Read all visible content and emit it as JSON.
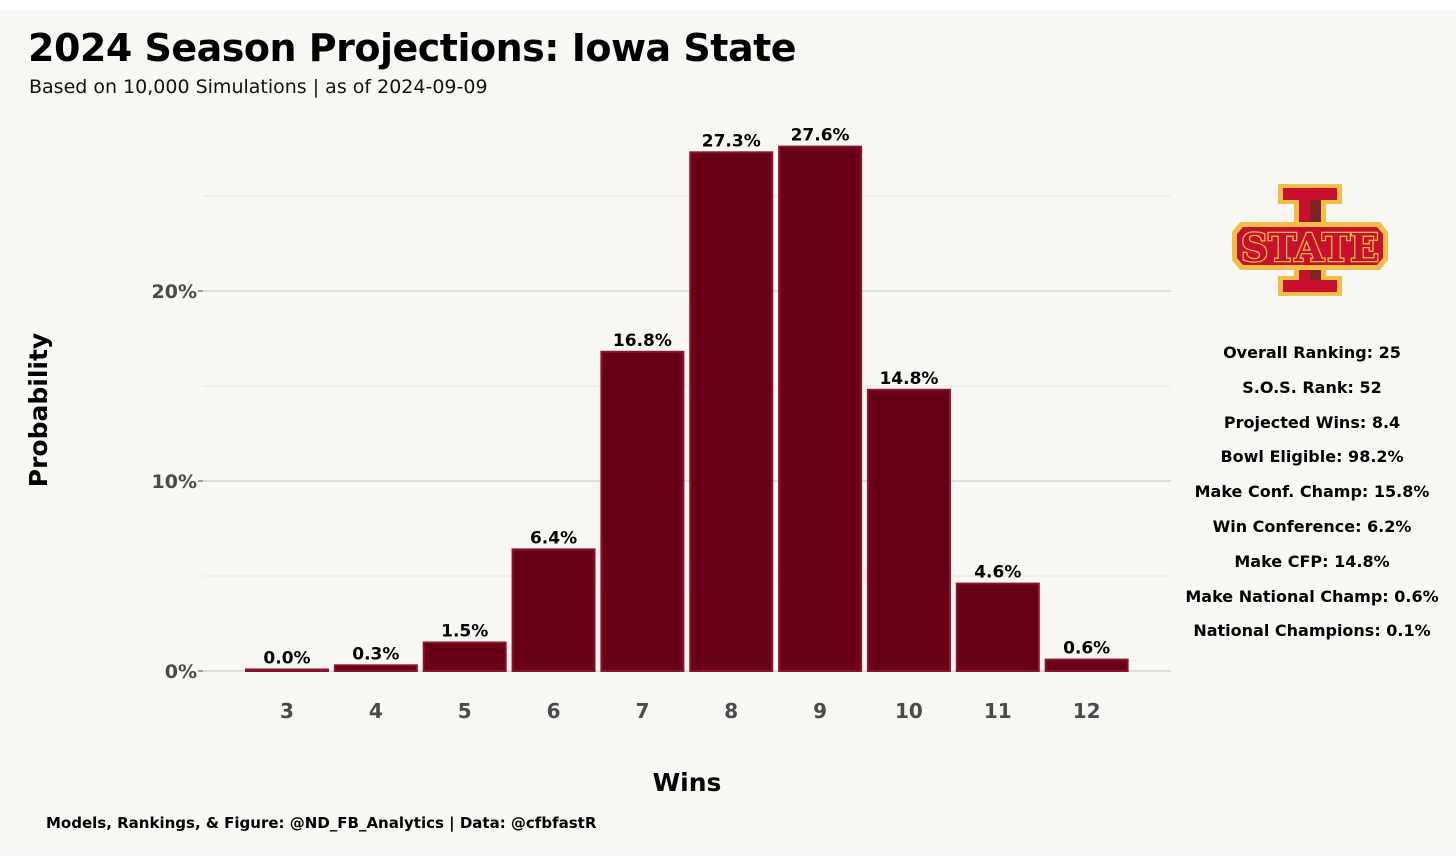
{
  "title": "2024 Season Projections: Iowa State",
  "subtitle": "Based on 10,000 Simulations | as of 2024-09-09",
  "caption": "Models, Rankings, & Figure: @ND_FB_Analytics | Data: @cfbfastR",
  "logo": {
    "text": "STATE",
    "icon": "iowa-state-logo",
    "colors": {
      "fill": "#c8102e",
      "outline": "#f1be48",
      "dark": "#7c2529"
    }
  },
  "stats": [
    "Overall Ranking: 25",
    "S.O.S. Rank: 52",
    "Projected Wins: 8.4",
    "Bowl Eligible: 98.2%",
    "Make Conf. Champ: 15.8%",
    "Win Conference: 6.2%",
    "Make CFP: 14.8%",
    "Make National Champ: 0.6%",
    "National Champions: 0.1%"
  ],
  "chart_data": {
    "type": "bar",
    "xlabel": "Wins",
    "ylabel": "Probability",
    "categories": [
      "3",
      "4",
      "5",
      "6",
      "7",
      "8",
      "9",
      "10",
      "11",
      "12"
    ],
    "values": [
      0.0,
      0.3,
      1.5,
      6.4,
      16.8,
      27.3,
      27.6,
      14.8,
      4.6,
      0.6
    ],
    "value_labels": [
      "0.0%",
      "0.3%",
      "1.5%",
      "6.4%",
      "16.8%",
      "27.3%",
      "27.6%",
      "14.8%",
      "4.6%",
      "0.6%"
    ],
    "yticks": [
      0,
      10,
      20
    ],
    "ytick_labels": [
      "0%",
      "10%",
      "20%"
    ],
    "ylim": [
      0,
      28.5
    ],
    "grid": true,
    "legend": "none",
    "colors": {
      "bar_fill": "#680016",
      "bar_border": "#8c1230",
      "grid_major": "#cfcfcf",
      "grid_minor": "#e6e6e6"
    }
  }
}
